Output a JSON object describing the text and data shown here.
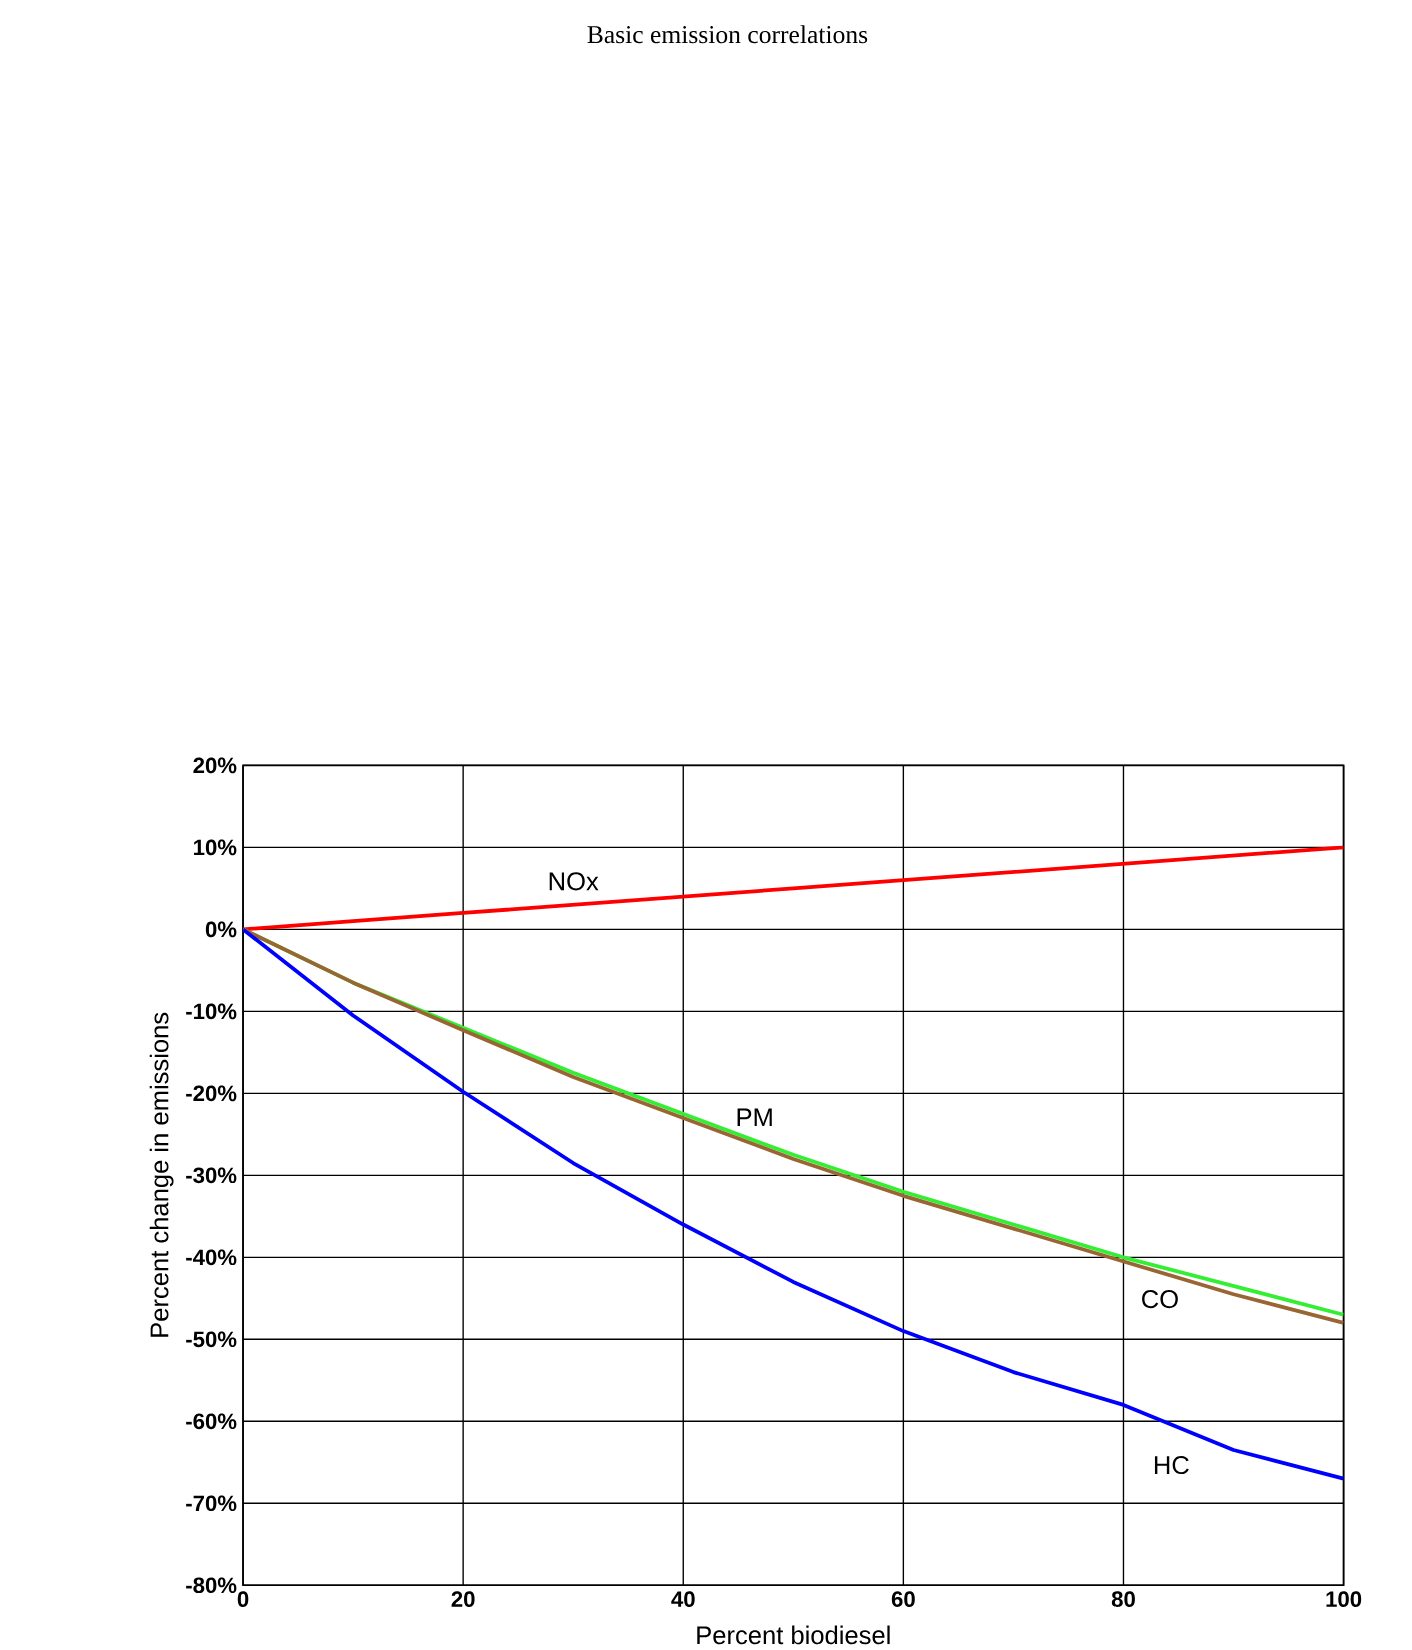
{
  "chart_data": {
    "type": "line",
    "title": "Basic emission correlations",
    "xlabel": "Percent biodiesel",
    "ylabel": "Percent change in emissions",
    "x": [
      0,
      10,
      20,
      30,
      40,
      50,
      60,
      70,
      80,
      90,
      100
    ],
    "series": [
      {
        "name": "NOx",
        "color": "#ff0000",
        "values": [
          0,
          1,
          2,
          3,
          4,
          5,
          6,
          7,
          8,
          9,
          10
        ]
      },
      {
        "name": "PM",
        "color": "#33ee33",
        "values": [
          0,
          -6.5,
          -12,
          -17.5,
          -22.5,
          -27.5,
          -32,
          -36,
          -40,
          -43.5,
          -47
        ]
      },
      {
        "name": "CO",
        "color": "#996633",
        "values": [
          0,
          -6.5,
          -12.3,
          -18,
          -23,
          -28,
          -32.5,
          -36.5,
          -40.5,
          -44.5,
          -48
        ]
      },
      {
        "name": "HC",
        "color": "#0000ff",
        "values": [
          0,
          -10.5,
          -19.8,
          -28.5,
          -36,
          -43,
          -49,
          -54,
          -58,
          -63.5,
          -67
        ]
      }
    ],
    "xlim": [
      0,
      100
    ],
    "xticks": [
      0,
      20,
      40,
      60,
      80,
      100
    ],
    "ylim": [
      -80,
      20
    ],
    "yticks": [
      {
        "value": -80,
        "label": "-80%"
      },
      {
        "value": -70,
        "label": "-70%"
      },
      {
        "value": -60,
        "label": "-60%"
      },
      {
        "value": -50,
        "label": "-50%"
      },
      {
        "value": -40,
        "label": "-40%"
      },
      {
        "value": -30,
        "label": "-30%"
      },
      {
        "value": -20,
        "label": "-20%"
      },
      {
        "value": -10,
        "label": "-10%"
      },
      {
        "value": 0,
        "label": "0%"
      },
      {
        "value": 10,
        "label": "10%"
      },
      {
        "value": 20,
        "label": "20%"
      }
    ],
    "grid": true,
    "legend": false,
    "marker": "none",
    "line_style": "solid"
  }
}
